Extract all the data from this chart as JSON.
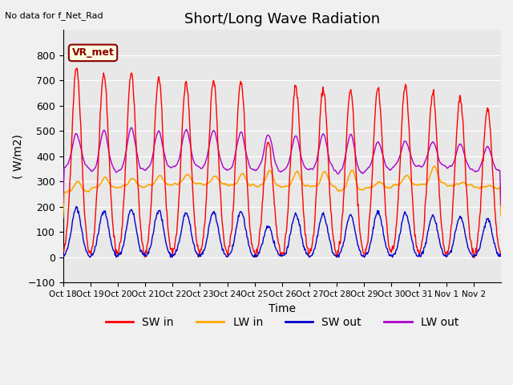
{
  "title": "Short/Long Wave Radiation",
  "ylabel": "( W/m2)",
  "xlabel": "Time",
  "top_left_text": "No data for f_Net_Rad",
  "legend_label_text": "VR_met",
  "ylim": [
    -100,
    900
  ],
  "yticks": [
    -100,
    0,
    100,
    200,
    300,
    400,
    500,
    600,
    700,
    800
  ],
  "xtick_labels": [
    "Oct 18",
    "Oct 19",
    "Oct 20",
    "Oct 21",
    "Oct 22",
    "Oct 23",
    "Oct 24",
    "Oct 25",
    "Oct 26",
    "Oct 27",
    "Oct 28",
    "Oct 29",
    "Oct 30",
    "Oct 31",
    "Nov 1",
    "Nov 2"
  ],
  "xtick_positions": [
    0,
    1,
    2,
    3,
    4,
    5,
    6,
    7,
    8,
    9,
    10,
    11,
    12,
    13,
    14,
    15
  ],
  "n_days": 16,
  "color_sw_in": "#ff0000",
  "color_lw_in": "#ffa500",
  "color_sw_out": "#0000cc",
  "color_lw_out": "#aa00cc",
  "background_color": "#e8e8e8",
  "fig_background_color": "#f0f0f0",
  "title_fontsize": 13,
  "label_fontsize": 10,
  "legend_fontsize": 10,
  "sw_in_peaks": [
    755,
    725,
    730,
    710,
    695,
    700,
    700,
    460,
    680,
    670,
    660,
    670,
    680,
    650,
    630,
    590
  ],
  "lw_in_base": [
    260,
    275,
    280,
    285,
    290,
    290,
    285,
    280,
    280,
    280,
    265,
    275,
    285,
    290,
    285,
    275
  ],
  "lw_in_peaks": [
    300,
    315,
    315,
    325,
    325,
    320,
    330,
    345,
    340,
    340,
    350,
    300,
    325,
    360,
    295,
    285
  ],
  "sw_out_peaks": [
    195,
    185,
    190,
    185,
    175,
    180,
    180,
    120,
    170,
    170,
    165,
    180,
    175,
    165,
    160,
    150
  ],
  "lw_out_base": [
    355,
    340,
    345,
    350,
    355,
    350,
    345,
    340,
    345,
    345,
    330,
    345,
    360,
    360,
    350,
    340
  ],
  "lw_out_peaks": [
    490,
    505,
    515,
    505,
    510,
    505,
    500,
    490,
    480,
    490,
    490,
    460,
    460,
    460,
    450,
    440
  ]
}
